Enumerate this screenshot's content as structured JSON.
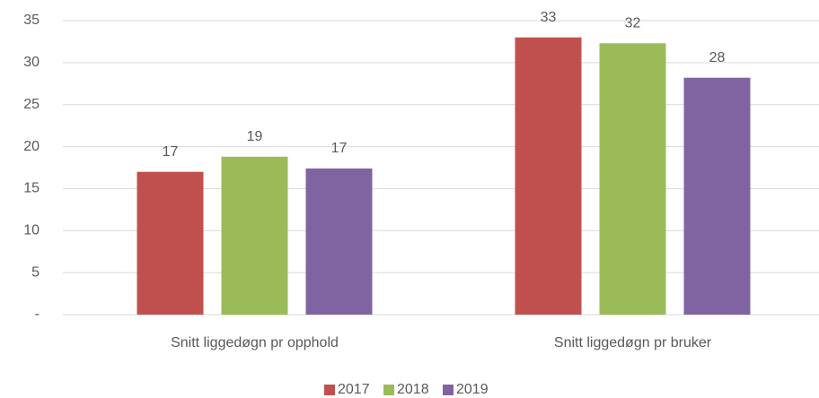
{
  "chart_data": {
    "type": "bar",
    "categories": [
      "Snitt liggedøgn pr opphold",
      "Snitt liggedøgn pr bruker"
    ],
    "series": [
      {
        "name": "2017",
        "color": "#c0504d",
        "values": [
          17.0,
          33.0
        ],
        "value_labels": [
          "17",
          "33"
        ]
      },
      {
        "name": "2018",
        "color": "#9bbb59",
        "values": [
          18.8,
          32.3
        ],
        "value_labels": [
          "19",
          "32"
        ]
      },
      {
        "name": "2019",
        "color": "#8064a2",
        "values": [
          17.4,
          28.2
        ],
        "value_labels": [
          "17",
          "28"
        ]
      }
    ],
    "ylim": [
      0,
      35
    ],
    "yticks": [
      {
        "value": 0,
        "label": "-"
      },
      5,
      10,
      15,
      20,
      25,
      30,
      35
    ],
    "grid": true,
    "legend": "bottom"
  }
}
